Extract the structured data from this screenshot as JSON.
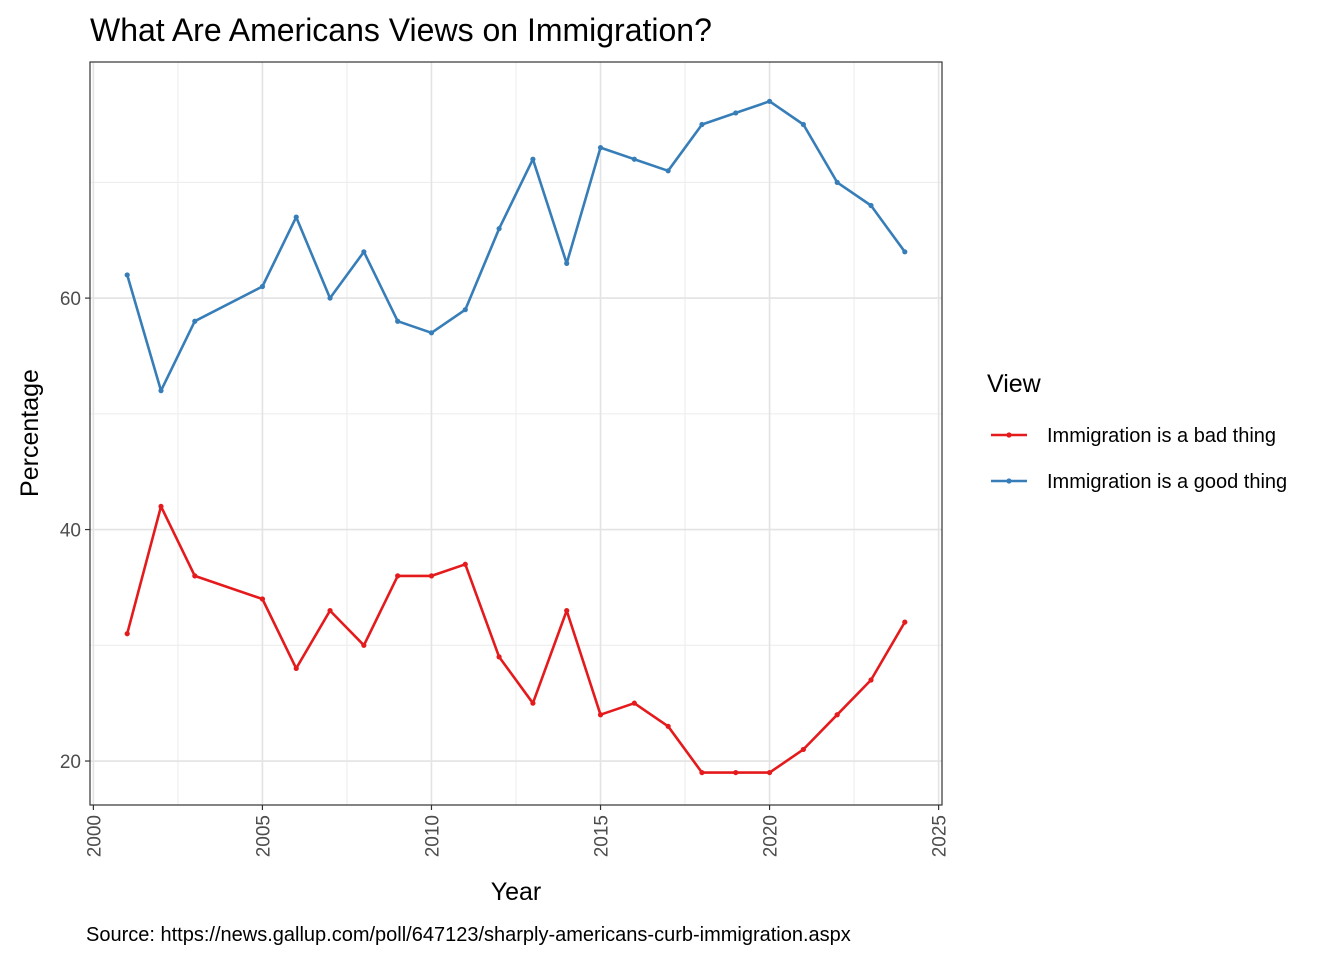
{
  "chart_data": {
    "type": "line",
    "title": "What Are Americans Views on Immigration?",
    "xlabel": "Year",
    "ylabel": "Percentage",
    "caption": "Source: https://news.gallup.com/poll/647123/sharply-americans-curb-immigration.aspx",
    "xlim": [
      1999.9,
      2025.1
    ],
    "ylim": [
      16.2,
      80.4
    ],
    "x_ticks": [
      2000,
      2005,
      2010,
      2015,
      2020,
      2025
    ],
    "y_ticks": [
      20,
      40,
      60
    ],
    "y_minor_ticks": [
      30,
      50,
      70
    ],
    "x_minor_ticks": [
      2002.5,
      2007.5,
      2012.5,
      2017.5,
      2022.5
    ],
    "grid": true,
    "legend": {
      "title": "View",
      "placement": "right"
    },
    "x": [
      2001,
      2002,
      2003,
      2005,
      2006,
      2007,
      2008,
      2009,
      2010,
      2011,
      2012,
      2013,
      2014,
      2015,
      2016,
      2017,
      2018,
      2019,
      2020,
      2021,
      2022,
      2023,
      2024
    ],
    "series": [
      {
        "name": "Immigration is a bad thing",
        "color": "#E41A1C",
        "values": [
          31,
          42,
          36,
          34,
          28,
          33,
          30,
          36,
          36,
          37,
          29,
          25,
          33,
          24,
          25,
          23,
          19,
          19,
          19,
          21,
          24,
          27,
          32
        ]
      },
      {
        "name": "Immigration is a good thing",
        "color": "#377EB8",
        "values": [
          62,
          52,
          58,
          61,
          67,
          60,
          64,
          58,
          57,
          59,
          66,
          72,
          63,
          73,
          72,
          71,
          75,
          76,
          77,
          75,
          70,
          68,
          64
        ]
      }
    ]
  }
}
